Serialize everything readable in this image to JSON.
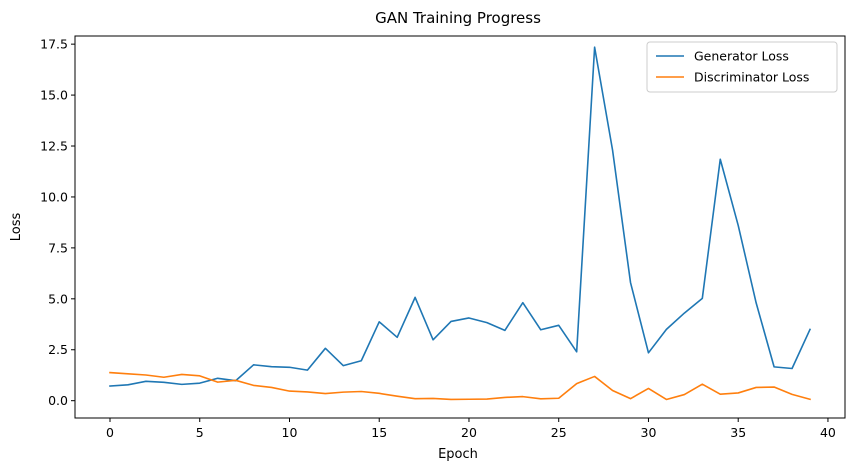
{
  "chart_data": {
    "type": "line",
    "title": "GAN Training Progress",
    "xlabel": "Epoch",
    "ylabel": "Loss",
    "xlim": [
      -1.95,
      40.95
    ],
    "ylim": [
      -0.85,
      17.9
    ],
    "xticks": [
      0,
      5,
      10,
      15,
      20,
      25,
      30,
      35,
      40
    ],
    "yticks": [
      0.0,
      2.5,
      5.0,
      7.5,
      10.0,
      12.5,
      15.0,
      17.5
    ],
    "ytick_labels": [
      "0.0",
      "2.5",
      "5.0",
      "7.5",
      "10.0",
      "12.5",
      "15.0",
      "17.5"
    ],
    "grid": false,
    "legend_position": "top-right",
    "x": [
      0,
      1,
      2,
      3,
      4,
      5,
      6,
      7,
      8,
      9,
      10,
      11,
      12,
      13,
      14,
      15,
      16,
      17,
      18,
      19,
      20,
      21,
      22,
      23,
      24,
      25,
      26,
      27,
      28,
      29,
      30,
      31,
      32,
      33,
      34,
      35,
      36,
      37,
      38,
      39
    ],
    "series": [
      {
        "name": "Generator Loss",
        "color": "#1f77b4",
        "values": [
          0.72,
          0.78,
          0.95,
          0.9,
          0.8,
          0.86,
          1.1,
          0.98,
          1.76,
          1.67,
          1.64,
          1.5,
          2.57,
          1.72,
          1.96,
          3.87,
          3.11,
          5.07,
          2.99,
          3.89,
          4.06,
          3.83,
          3.45,
          4.81,
          3.48,
          3.7,
          2.4,
          17.35,
          12.3,
          5.8,
          2.35,
          3.5,
          4.3,
          5.02,
          11.85,
          8.6,
          4.8,
          1.66,
          1.58,
          3.5
        ]
      },
      {
        "name": "Discriminator Loss",
        "color": "#ff7f0e",
        "values": [
          1.38,
          1.32,
          1.26,
          1.15,
          1.29,
          1.22,
          0.91,
          1.0,
          0.75,
          0.65,
          0.47,
          0.43,
          0.35,
          0.42,
          0.45,
          0.36,
          0.22,
          0.1,
          0.11,
          0.06,
          0.07,
          0.08,
          0.16,
          0.2,
          0.09,
          0.12,
          0.84,
          1.19,
          0.5,
          0.1,
          0.6,
          0.06,
          0.3,
          0.81,
          0.32,
          0.38,
          0.65,
          0.67,
          0.31,
          0.07
        ]
      }
    ]
  }
}
